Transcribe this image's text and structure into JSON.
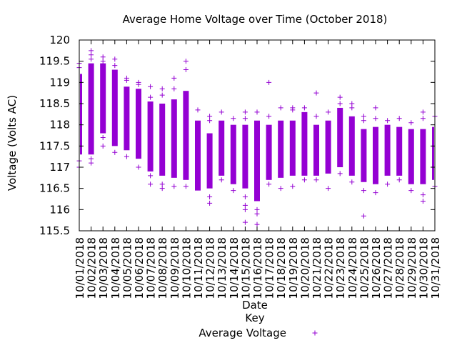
{
  "chart_data": {
    "type": "scatter",
    "title": "Average Home Voltage over Time (October 2018)",
    "xlabel": "Date",
    "ylabel": "Voltage (Volts AC)",
    "ylim": [
      115.5,
      120
    ],
    "y_ticks": [
      "115.5",
      "116",
      "116.5",
      "117",
      "117.5",
      "118",
      "118.5",
      "119",
      "119.5",
      "120"
    ],
    "legend": {
      "title": "Key",
      "placement": "bottom-center"
    },
    "grid": false,
    "marker": "+",
    "series": [
      {
        "name": "Average Voltage",
        "color": "#9400d3",
        "days": [
          {
            "date": "10/01/2018",
            "low": 117.3,
            "high": 119.2,
            "outliers": [
              117.0,
              117.15,
              119.35,
              119.45
            ]
          },
          {
            "date": "10/02/2018",
            "low": 117.3,
            "high": 119.45,
            "outliers": [
              117.1,
              117.2,
              119.55,
              119.65,
              119.75
            ]
          },
          {
            "date": "10/03/2018",
            "low": 117.8,
            "high": 119.45,
            "outliers": [
              117.5,
              117.7,
              119.5,
              119.6
            ]
          },
          {
            "date": "10/04/2018",
            "low": 117.5,
            "high": 119.3,
            "outliers": [
              117.35,
              119.4,
              119.55
            ]
          },
          {
            "date": "10/05/2018",
            "low": 117.4,
            "high": 118.9,
            "outliers": [
              117.25,
              119.05,
              119.1
            ]
          },
          {
            "date": "10/06/2018",
            "low": 117.2,
            "high": 118.85,
            "outliers": [
              117.0,
              118.95,
              119.0
            ]
          },
          {
            "date": "10/07/2018",
            "low": 116.9,
            "high": 118.55,
            "outliers": [
              116.6,
              116.8,
              118.65,
              118.9
            ]
          },
          {
            "date": "10/08/2018",
            "low": 116.8,
            "high": 118.5,
            "outliers": [
              116.5,
              116.6,
              118.7,
              118.85
            ]
          },
          {
            "date": "10/09/2018",
            "low": 116.75,
            "high": 118.6,
            "outliers": [
              116.55,
              118.85,
              119.1
            ]
          },
          {
            "date": "10/10/2018",
            "low": 116.7,
            "high": 118.8,
            "outliers": [
              116.55,
              119.3,
              119.5
            ]
          },
          {
            "date": "10/11/2018",
            "low": 116.45,
            "high": 118.1,
            "outliers": [
              118.35
            ]
          },
          {
            "date": "10/12/2018",
            "low": 116.5,
            "high": 117.8,
            "outliers": [
              116.15,
              116.3,
              118.1,
              118.2
            ]
          },
          {
            "date": "10/13/2018",
            "low": 116.8,
            "high": 118.1,
            "outliers": [
              116.7,
              118.3
            ]
          },
          {
            "date": "10/14/2018",
            "low": 116.6,
            "high": 118.0,
            "outliers": [
              116.45,
              118.15
            ]
          },
          {
            "date": "10/15/2018",
            "low": 116.5,
            "high": 118.0,
            "outliers": [
              115.7,
              116.0,
              116.1,
              116.3,
              118.15,
              118.3
            ]
          },
          {
            "date": "10/16/2018",
            "low": 116.2,
            "high": 118.1,
            "outliers": [
              115.65,
              115.9,
              116.0,
              118.3
            ]
          },
          {
            "date": "10/17/2018",
            "low": 116.7,
            "high": 118.0,
            "outliers": [
              116.6,
              118.2,
              119.0
            ]
          },
          {
            "date": "10/18/2018",
            "low": 116.75,
            "high": 118.1,
            "outliers": [
              116.5,
              118.4
            ]
          },
          {
            "date": "10/19/2018",
            "low": 116.8,
            "high": 118.1,
            "outliers": [
              116.55,
              118.35,
              118.4
            ]
          },
          {
            "date": "10/20/2018",
            "low": 116.8,
            "high": 118.3,
            "outliers": [
              116.7,
              118.4
            ]
          },
          {
            "date": "10/21/2018",
            "low": 116.8,
            "high": 118.0,
            "outliers": [
              116.7,
              118.2,
              118.75
            ]
          },
          {
            "date": "10/22/2018",
            "low": 116.85,
            "high": 118.1,
            "outliers": [
              116.5,
              118.3
            ]
          },
          {
            "date": "10/23/2018",
            "low": 117.0,
            "high": 118.4,
            "outliers": [
              116.85,
              118.5,
              118.65
            ]
          },
          {
            "date": "10/24/2018",
            "low": 116.8,
            "high": 118.2,
            "outliers": [
              116.65,
              118.4,
              118.5
            ]
          },
          {
            "date": "10/25/2018",
            "low": 116.65,
            "high": 117.9,
            "outliers": [
              115.85,
              116.45,
              118.1,
              118.2
            ]
          },
          {
            "date": "10/26/2018",
            "low": 116.6,
            "high": 117.95,
            "outliers": [
              116.4,
              118.15,
              118.4
            ]
          },
          {
            "date": "10/27/2018",
            "low": 116.8,
            "high": 118.0,
            "outliers": [
              116.6,
              118.1
            ]
          },
          {
            "date": "10/28/2018",
            "low": 116.8,
            "high": 117.95,
            "outliers": [
              116.7,
              118.15
            ]
          },
          {
            "date": "10/29/2018",
            "low": 116.6,
            "high": 117.9,
            "outliers": [
              116.45,
              118.05
            ]
          },
          {
            "date": "10/30/2018",
            "low": 116.6,
            "high": 117.9,
            "outliers": [
              116.2,
              116.35,
              118.15,
              118.3
            ]
          },
          {
            "date": "10/31/2018",
            "low": 116.7,
            "high": 117.95,
            "outliers": [
              116.55,
              118.2
            ]
          }
        ]
      }
    ]
  }
}
